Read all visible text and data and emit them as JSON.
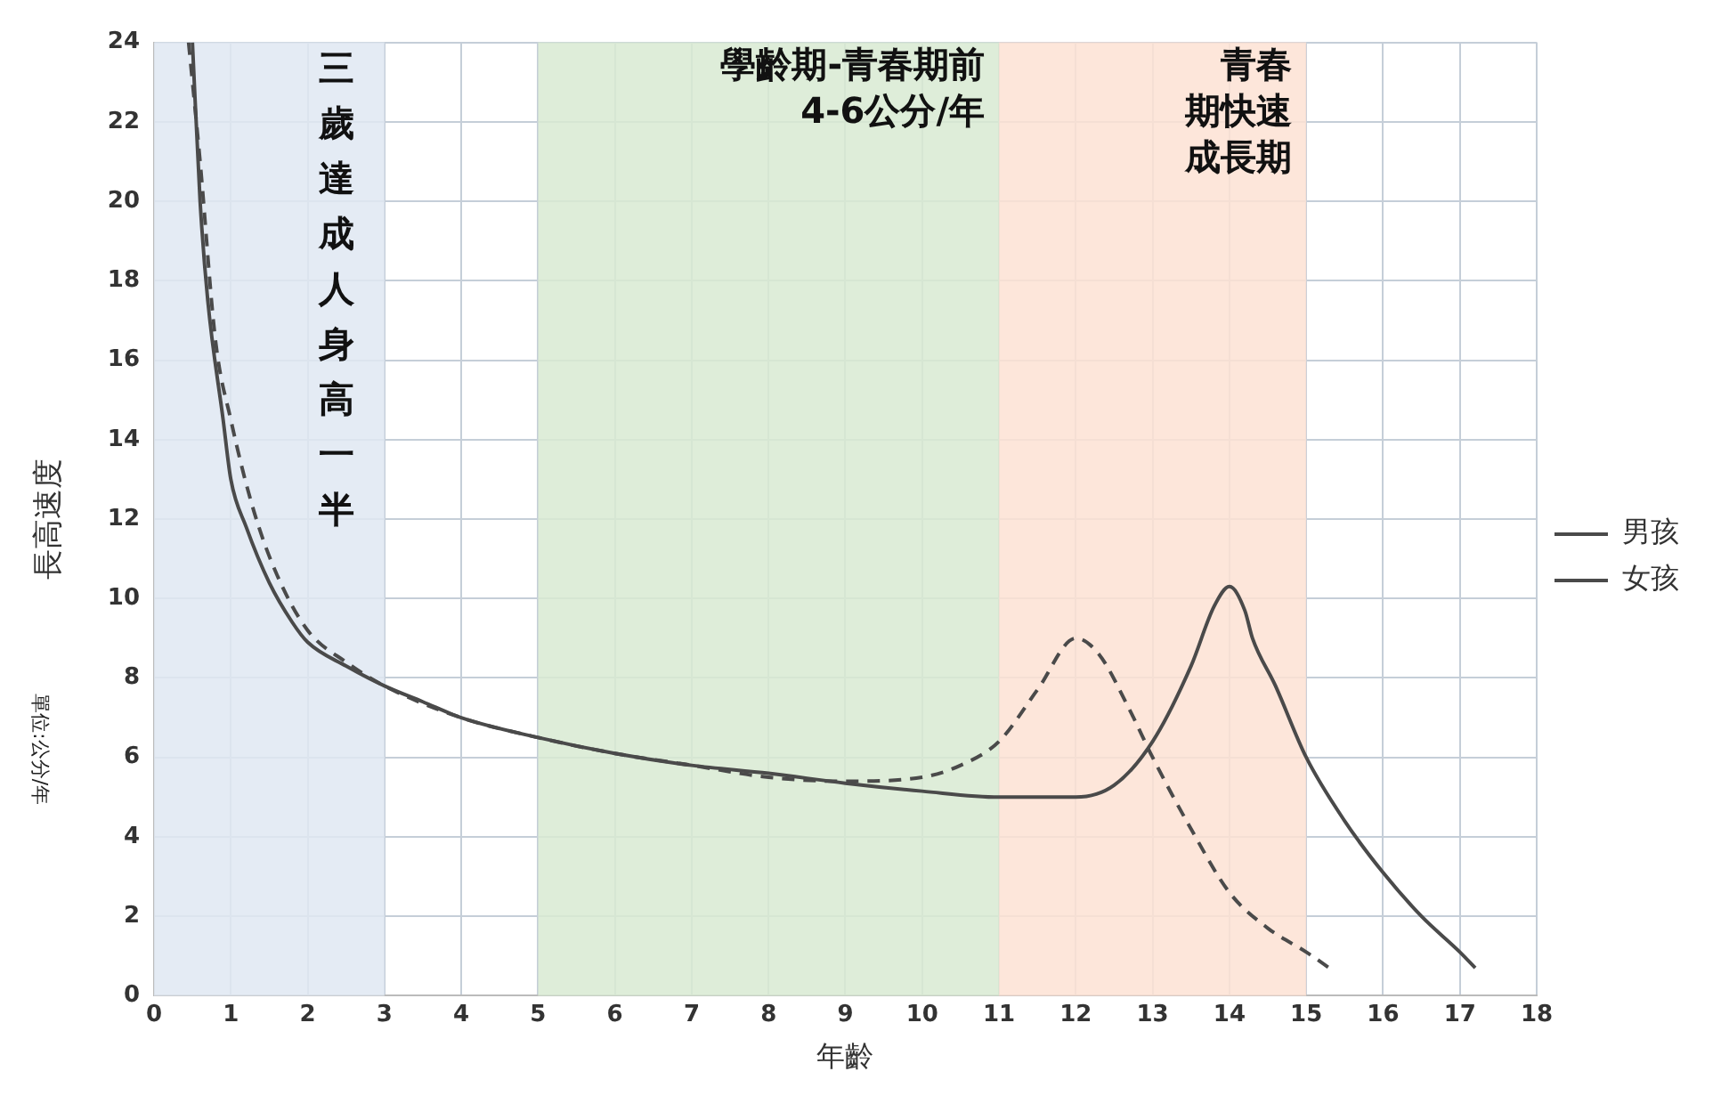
{
  "chart_data": {
    "type": "line",
    "xlabel": "年齡",
    "ylabel": "長高速度",
    "annotations": [
      "單位:公分/年"
    ],
    "xlim": [
      0,
      18
    ],
    "xticks": [
      0,
      1,
      2,
      3,
      4,
      5,
      6,
      7,
      8,
      9,
      10,
      11,
      12,
      13,
      14,
      15,
      16,
      17,
      18
    ],
    "ylim": [
      0,
      24
    ],
    "yticks": [
      0,
      2,
      4,
      6,
      8,
      10,
      12,
      14,
      16,
      18,
      20,
      22,
      24
    ],
    "grid": true,
    "legend": "right",
    "marker": "none",
    "bands": [
      {
        "axis": "x",
        "from": 0,
        "to": 3,
        "label": "三歲達成人身高一半",
        "color": "#dfe8f2"
      },
      {
        "axis": "x",
        "from": 5,
        "to": 11,
        "label": "學齡期-青春期前\n4-6公分/年",
        "color": "#d8ead2"
      },
      {
        "axis": "x",
        "from": 11,
        "to": 15,
        "label": "青春期快速成長期",
        "color": "#fde2d4"
      }
    ],
    "series": [
      {
        "name": "男孩",
        "color": "#4a4a4a",
        "line_style": "solid",
        "x": [
          0.5,
          0.6,
          0.7,
          0.9,
          1,
          1.2,
          1.5,
          1.8,
          2,
          2.5,
          3,
          3.5,
          4,
          5,
          6,
          7,
          8,
          9,
          10,
          11,
          12,
          12.5,
          13,
          13.5,
          13.8,
          14,
          14.2,
          14.3,
          14.6,
          15,
          15.5,
          16,
          16.5,
          17,
          17.2
        ],
        "values": [
          24,
          20,
          17.5,
          14.5,
          13,
          11.8,
          10.4,
          9.4,
          8.9,
          8.3,
          7.8,
          7.4,
          7.0,
          6.5,
          6.1,
          5.8,
          5.6,
          5.35,
          5.15,
          5.0,
          5.0,
          5.3,
          6.4,
          8.3,
          9.8,
          10.3,
          9.7,
          9.0,
          7.8,
          6.0,
          4.4,
          3.1,
          2.0,
          1.1,
          0.7
        ]
      },
      {
        "name": "女孩",
        "color": "#4a4a4a",
        "line_style": "dashed",
        "x": [
          0.45,
          0.6,
          0.8,
          1,
          1.3,
          1.6,
          2,
          2.5,
          3,
          4,
          5,
          6,
          7,
          8,
          9,
          10,
          10.5,
          11,
          11.5,
          12,
          12.3,
          12.7,
          13,
          13.5,
          14,
          14.5,
          15,
          15.3
        ],
        "values": [
          24,
          21,
          16.5,
          14.5,
          12.2,
          10.6,
          9.2,
          8.4,
          7.8,
          7.0,
          6.5,
          6.1,
          5.8,
          5.5,
          5.4,
          5.5,
          5.8,
          6.4,
          7.7,
          9.0,
          8.6,
          7.2,
          6.0,
          4.2,
          2.6,
          1.7,
          1.1,
          0.7
        ]
      }
    ]
  }
}
